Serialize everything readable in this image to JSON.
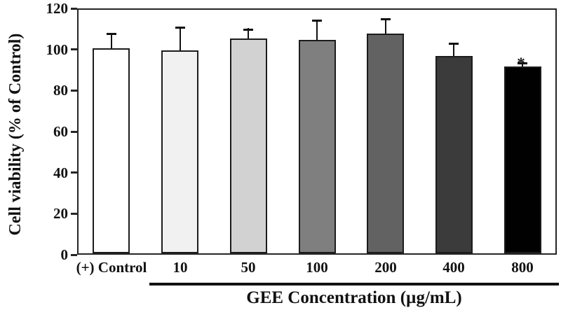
{
  "figure": {
    "type": "scientific-bar-chart",
    "background": "#ffffff",
    "frame_color": "#262626"
  },
  "chart_data": {
    "type": "bar",
    "title": "",
    "ylabel": "Cell viability (% of Control)",
    "xlabel": "GEE Concentration (µg/mL)",
    "categories": [
      "(+) Control",
      "10",
      "50",
      "100",
      "200",
      "400",
      "800"
    ],
    "values": [
      100,
      99,
      104.5,
      104,
      107,
      96,
      91
    ],
    "errors": [
      7.5,
      11.5,
      5,
      10,
      7.5,
      6.5,
      2
    ],
    "error_direction": "upper-only",
    "bar_fills": [
      "#ffffff",
      "#f1f1f1",
      "#d2d2d2",
      "#7f7f7f",
      "#626262",
      "#3b3b3b",
      "#010101"
    ],
    "bar_border_color": "#1c1c1c",
    "error_color": "#111111",
    "ylim": [
      0,
      120
    ],
    "yticks": [
      0,
      20,
      40,
      60,
      80,
      100,
      120
    ],
    "grid": false,
    "legend": "none",
    "annotations": [
      {
        "text": "*",
        "category_index": 6,
        "meaning": "statistically-significant"
      }
    ],
    "group_underline": {
      "covers_categories": [
        "10",
        "50",
        "100",
        "200",
        "400",
        "800"
      ],
      "label": "GEE Concentration (µg/mL)"
    }
  }
}
